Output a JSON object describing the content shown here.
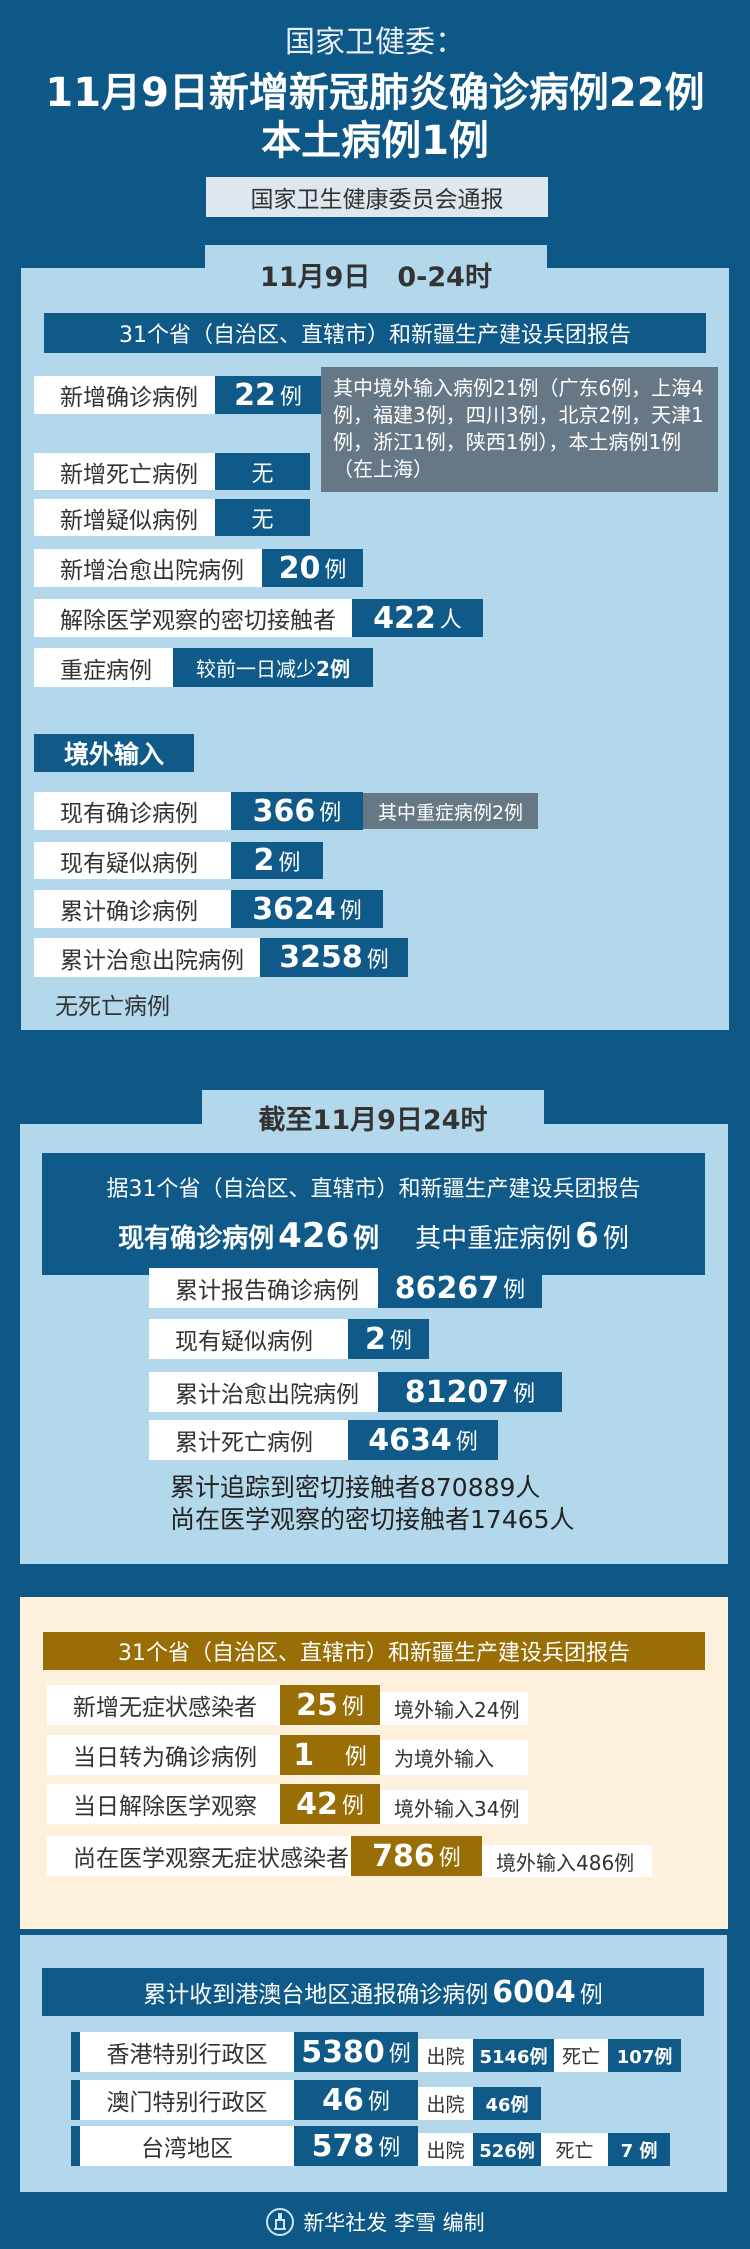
{
  "header": {
    "kicker": "国家卫健委：",
    "title_line1": "11月9日新增新冠肺炎确诊病例22例",
    "title_line2": "本土病例1例",
    "source": "国家卫生健康委员会通报"
  },
  "colors": {
    "background": "#0d5886",
    "panel": "#b3d8ec",
    "value_box": "#0f5a88",
    "note_box": "#667886",
    "gold": "#9a6e06",
    "beige": "#fdf0dc"
  },
  "daily": {
    "tab": "11月9日　0-24时",
    "banner": "31个省（自治区、直辖市）和新疆生产建设兵团报告",
    "rows": [
      {
        "label": "新增确诊病例",
        "value": "22",
        "unit": "例"
      },
      {
        "label": "新增死亡病例",
        "value": "",
        "unit": "无"
      },
      {
        "label": "新增疑似病例",
        "value": "",
        "unit": "无"
      },
      {
        "label": "新增治愈出院病例",
        "value": "20",
        "unit": "例"
      },
      {
        "label": "解除医学观察的密切接触者",
        "value": "422",
        "unit": "人"
      },
      {
        "label": "重症病例",
        "value": "较前一日减少",
        "unit": "2例"
      }
    ],
    "confirmed_note": "其中境外输入病例21例（广东6例，上海4例，福建3例，四川3例，北京2例，天津1例，浙江1例，陕西1例），本土病例1例（在上海）",
    "imported": {
      "heading": "境外输入",
      "rows": [
        {
          "label": "现有确诊病例",
          "value": "366",
          "unit": "例",
          "note": "其中重症病例2例"
        },
        {
          "label": "现有疑似病例",
          "value": "2",
          "unit": "例"
        },
        {
          "label": "累计确诊病例",
          "value": "3624",
          "unit": "例"
        },
        {
          "label": "累计治愈出院病例",
          "value": "3258",
          "unit": "例"
        }
      ],
      "no_death": "无死亡病例"
    }
  },
  "cumulative": {
    "tab": "截至11月9日24时",
    "banner": "据31个省（自治区、直辖市）和新疆生产建设兵团报告",
    "current_label": "现有确诊病例",
    "current_value": "426",
    "current_unit": "例",
    "severe_label": "其中重症病例",
    "severe_value": "6",
    "severe_unit": "例",
    "rows": [
      {
        "label": "累计报告确诊病例",
        "value": "86267",
        "unit": "例"
      },
      {
        "label": "现有疑似病例",
        "value": "2",
        "unit": "例"
      },
      {
        "label": "累计治愈出院病例",
        "value": "81207",
        "unit": "例"
      },
      {
        "label": "累计死亡病例",
        "value": "4634",
        "unit": "例"
      }
    ],
    "line1": "累计追踪到密切接触者870889人",
    "line2": "尚在医学观察的密切接触者17465人"
  },
  "asymptomatic": {
    "banner": "31个省（自治区、直辖市）和新疆生产建设兵团报告",
    "rows": [
      {
        "label": "新增无症状感染者",
        "value": "25",
        "unit": "例",
        "note": "境外输入24例"
      },
      {
        "label": "当日转为确诊病例",
        "value": "1",
        "unit": "例",
        "note": "为境外输入"
      },
      {
        "label": "当日解除医学观察",
        "value": "42",
        "unit": "例",
        "note": "境外输入34例"
      },
      {
        "label": "尚在医学观察无症状感染者",
        "value": "786",
        "unit": "例",
        "note": "境外输入486例"
      }
    ]
  },
  "hmt": {
    "banner_text": "累计收到港澳台地区通报确诊病例",
    "banner_value": "6004",
    "banner_unit": "例",
    "rows": [
      {
        "region": "香港特别行政区",
        "value": "5380",
        "unit": "例",
        "discharged_label": "出院",
        "discharged": "5146例",
        "death_label": "死亡",
        "deaths": "107例"
      },
      {
        "region": "澳门特别行政区",
        "value": "46",
        "unit": "例",
        "discharged_label": "出院",
        "discharged": "46例"
      },
      {
        "region": "台湾地区",
        "value": "578",
        "unit": "例",
        "discharged_label": "出院",
        "discharged": "526例",
        "death_label": "死亡",
        "deaths": "7 例"
      }
    ]
  },
  "footer": {
    "credit": "新华社发 李雪 编制"
  }
}
